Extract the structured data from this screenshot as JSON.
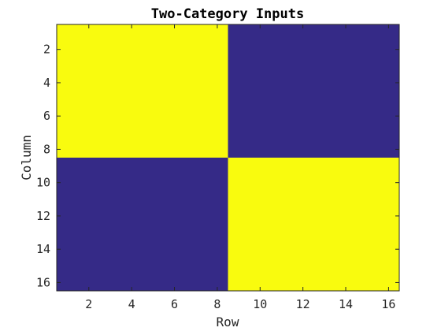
{
  "chart_data": {
    "type": "heatmap",
    "title": "Two-Category Inputs",
    "xlabel": "Row",
    "ylabel": "Column",
    "x_ticks": [
      2,
      4,
      6,
      8,
      10,
      12,
      14,
      16
    ],
    "y_ticks": [
      2,
      4,
      6,
      8,
      10,
      12,
      14,
      16
    ],
    "xlim": [
      0.5,
      16.5
    ],
    "ylim": [
      0.5,
      16.5
    ],
    "y_direction": "reversed",
    "colormap": {
      "0": "#352a87",
      "1": "#f9fb0e"
    },
    "blocks": [
      {
        "rows": [
          1,
          8
        ],
        "cols": [
          1,
          8
        ],
        "value": 1
      },
      {
        "rows": [
          9,
          16
        ],
        "cols": [
          1,
          8
        ],
        "value": 0
      },
      {
        "rows": [
          1,
          8
        ],
        "cols": [
          9,
          16
        ],
        "value": 0
      },
      {
        "rows": [
          9,
          16
        ],
        "cols": [
          9,
          16
        ],
        "value": 1
      }
    ]
  }
}
